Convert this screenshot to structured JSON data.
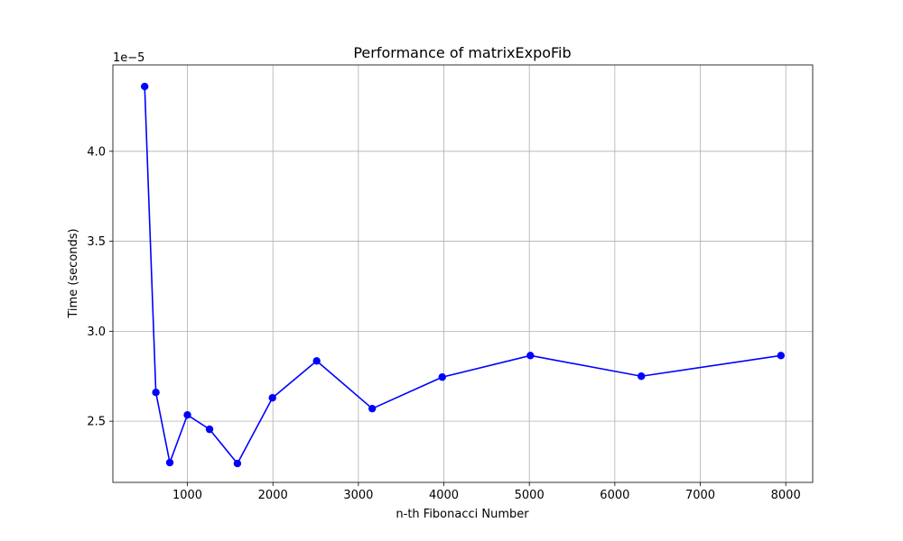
{
  "chart_data": {
    "type": "line",
    "title": "Performance of matrixExpoFib",
    "xlabel": "n-th Fibonacci Number",
    "ylabel": "Time (seconds)",
    "y_offset_label": "1e−5",
    "x": [
      500,
      631,
      794,
      1000,
      1259,
      1585,
      1995,
      2512,
      3162,
      3981,
      5012,
      6310,
      7943
    ],
    "series": [
      {
        "values": [
          4.36e-05,
          2.66e-05,
          2.27e-05,
          2.535e-05,
          2.455e-05,
          2.265e-05,
          2.63e-05,
          2.835e-05,
          2.57e-05,
          2.745e-05,
          2.865e-05,
          2.75e-05,
          2.865e-05
        ],
        "color": "#0000ff",
        "marker": "circle"
      }
    ],
    "xlim": [
      128,
      8315
    ],
    "ylim": [
      2.16e-05,
      4.48e-05
    ],
    "x_ticks": [
      1000,
      2000,
      3000,
      4000,
      5000,
      6000,
      7000,
      8000
    ],
    "x_tick_labels": [
      "1000",
      "2000",
      "3000",
      "4000",
      "5000",
      "6000",
      "7000",
      "8000"
    ],
    "y_ticks": [
      2.5e-05,
      3e-05,
      3.5e-05,
      4e-05
    ],
    "y_tick_labels": [
      "2.5",
      "3.0",
      "3.5",
      "4.0"
    ],
    "grid": true
  }
}
